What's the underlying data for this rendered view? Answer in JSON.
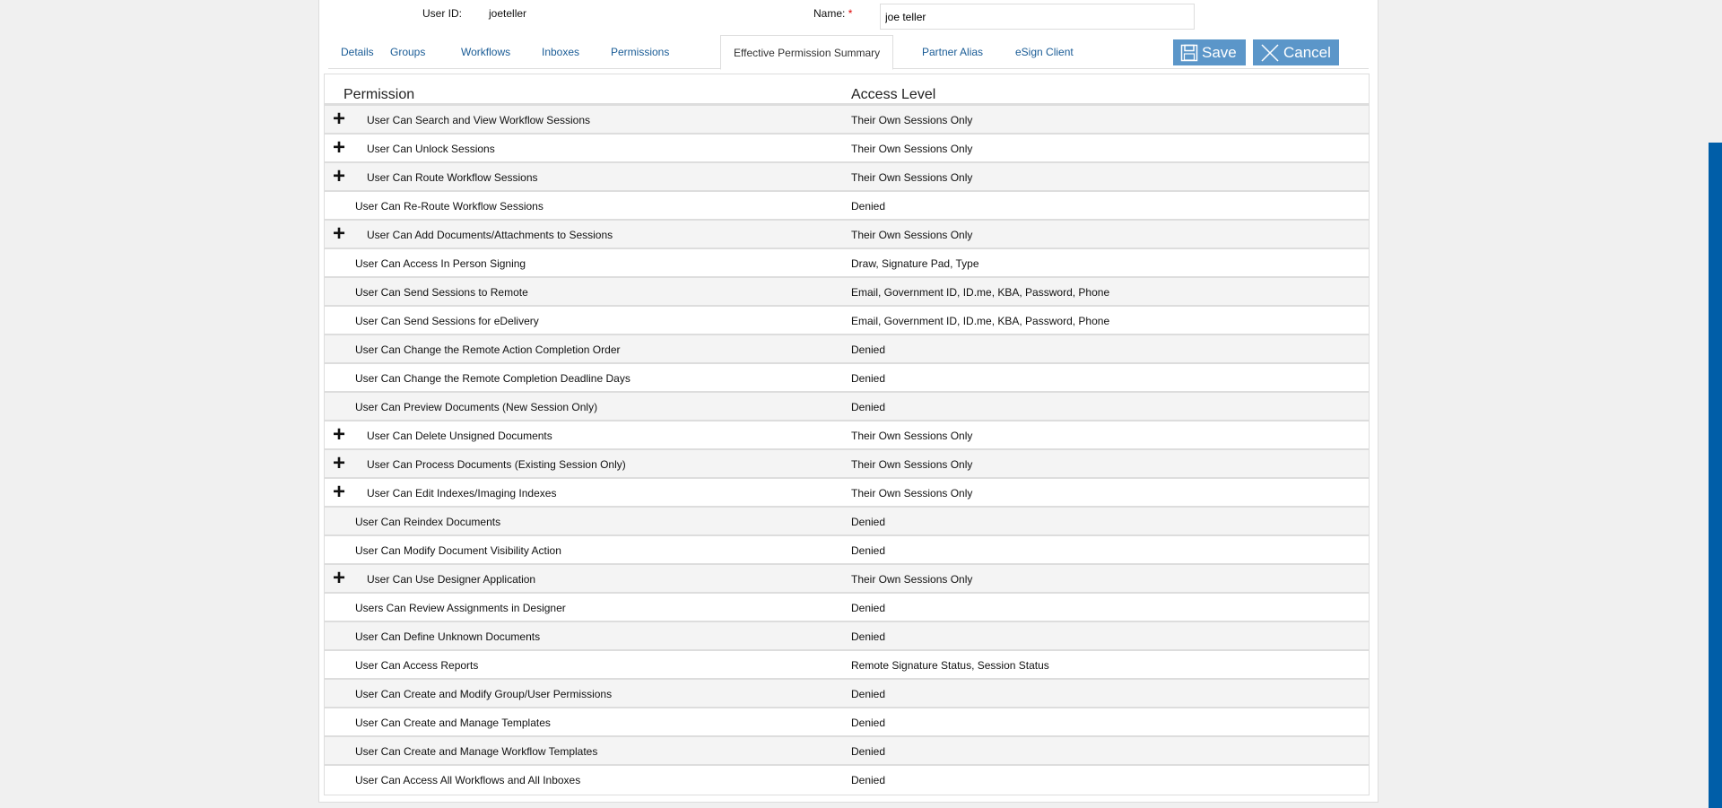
{
  "user": {
    "id_label": "User ID:",
    "id_value": "joeteller",
    "name_label": "Name:",
    "required_mark": "*",
    "name_value": "joe teller"
  },
  "tabs": [
    {
      "label": "Details"
    },
    {
      "label": "Groups"
    },
    {
      "label": "Workflows"
    },
    {
      "label": "Inboxes"
    },
    {
      "label": "Permissions"
    },
    {
      "label": "Effective Permission Summary",
      "active": true
    },
    {
      "label": "Partner Alias"
    },
    {
      "label": "eSign Client"
    }
  ],
  "buttons": {
    "save": "Save",
    "cancel": "Cancel"
  },
  "table": {
    "headers": [
      "Permission",
      "Access Level"
    ],
    "rows": [
      {
        "permission": "User Can Search and View Workflow Sessions",
        "access": "Their Own Sessions Only",
        "expandable": true
      },
      {
        "permission": "User Can Unlock Sessions",
        "access": "Their Own Sessions Only",
        "expandable": true
      },
      {
        "permission": "User Can Route Workflow Sessions",
        "access": "Their Own Sessions Only",
        "expandable": true
      },
      {
        "permission": "User Can Re-Route Workflow Sessions",
        "access": "Denied",
        "expandable": false
      },
      {
        "permission": "User Can Add Documents/Attachments to Sessions",
        "access": "Their Own Sessions Only",
        "expandable": true
      },
      {
        "permission": "User Can Access In Person Signing",
        "access": "Draw, Signature Pad, Type",
        "expandable": false
      },
      {
        "permission": "User Can Send Sessions to Remote",
        "access": "Email, Government ID, ID.me, KBA, Password, Phone",
        "expandable": false
      },
      {
        "permission": "User Can Send Sessions for eDelivery",
        "access": "Email, Government ID, ID.me, KBA, Password, Phone",
        "expandable": false
      },
      {
        "permission": "User Can Change the Remote Action Completion Order",
        "access": "Denied",
        "expandable": false
      },
      {
        "permission": "User Can Change the Remote Completion Deadline Days",
        "access": "Denied",
        "expandable": false
      },
      {
        "permission": "User Can Preview Documents (New Session Only)",
        "access": "Denied",
        "expandable": false
      },
      {
        "permission": "User Can Delete Unsigned Documents",
        "access": "Their Own Sessions Only",
        "expandable": true
      },
      {
        "permission": "User Can Process Documents (Existing Session Only)",
        "access": "Their Own Sessions Only",
        "expandable": true
      },
      {
        "permission": "User Can Edit Indexes/Imaging Indexes",
        "access": "Their Own Sessions Only",
        "expandable": true
      },
      {
        "permission": "User Can Reindex Documents",
        "access": "Denied",
        "expandable": false
      },
      {
        "permission": "User Can Modify Document Visibility Action",
        "access": "Denied",
        "expandable": false
      },
      {
        "permission": "User Can Use Designer Application",
        "access": "Their Own Sessions Only",
        "expandable": true
      },
      {
        "permission": "Users Can Review Assignments in Designer",
        "access": "Denied",
        "expandable": false
      },
      {
        "permission": "User Can Define Unknown Documents",
        "access": "Denied",
        "expandable": false
      },
      {
        "permission": "User Can Access Reports",
        "access": "Remote Signature Status, Session Status",
        "expandable": false
      },
      {
        "permission": "User Can Create and Modify Group/User Permissions",
        "access": "Denied",
        "expandable": false
      },
      {
        "permission": "User Can Create and Manage Templates",
        "access": "Denied",
        "expandable": false
      },
      {
        "permission": "User Can Create and Manage Workflow Templates",
        "access": "Denied",
        "expandable": false
      },
      {
        "permission": "User Can Access All Workflows and All Inboxes",
        "access": "Denied",
        "expandable": false
      }
    ]
  },
  "colors": {
    "accent": "#5b96c9",
    "link": "#1a5c96",
    "scrollbar": "#005ea8"
  }
}
